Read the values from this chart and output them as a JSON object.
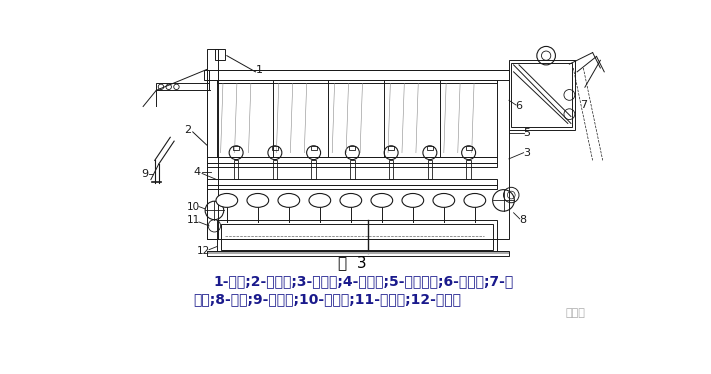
{
  "fig_label": "图  3",
  "caption_line1": "1-机架;2-磨毛辊;3-刷毛辊;4-进布辊;5-出布轧辊;6-压布辊;7-落",
  "caption_line2": "布架;8-吸尘;9-紧布架;10-吸边器;11-浸渍辊;12-刮水器",
  "bg_color": "#ffffff",
  "text_color": "#1a1a1a",
  "caption_color": "#1a1a8c",
  "fig_label_color": "#000000",
  "watermark": "印染人"
}
